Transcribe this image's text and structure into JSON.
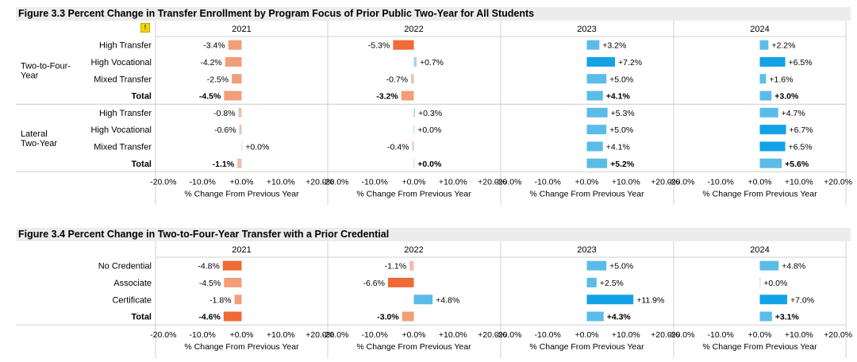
{
  "figures": [
    {
      "title": "Figure 3.3 Percent Change in Transfer Enrollment by Program Focus of Prior Public Two-Year for All Students",
      "info_icon": "info-icon",
      "chart_data": {
        "type": "bar",
        "orientation": "horizontal",
        "panels": [
          "2021",
          "2022",
          "2023",
          "2024"
        ],
        "groups": [
          {
            "label": "Two-to-Four-\nYear",
            "rows": [
              {
                "label": "High Transfer",
                "values": [
                  -3.4,
                  -5.3,
                  3.2,
                  2.2
                ]
              },
              {
                "label": "High Vocational",
                "values": [
                  -4.2,
                  0.7,
                  7.2,
                  6.5
                ]
              },
              {
                "label": "Mixed Transfer",
                "values": [
                  -2.5,
                  -0.7,
                  5.0,
                  1.6
                ]
              },
              {
                "label": "Total",
                "bold": true,
                "values": [
                  -4.5,
                  -3.2,
                  4.1,
                  3.0
                ]
              }
            ]
          },
          {
            "label": "Lateral\nTwo-Year",
            "rows": [
              {
                "label": "High Transfer",
                "values": [
                  -0.8,
                  0.3,
                  5.3,
                  4.7
                ]
              },
              {
                "label": "High Vocational",
                "values": [
                  -0.6,
                  0.0,
                  5.0,
                  6.7
                ]
              },
              {
                "label": "Mixed Transfer",
                "values": [
                  0.0,
                  -0.4,
                  4.1,
                  6.5
                ]
              },
              {
                "label": "Total",
                "bold": true,
                "values": [
                  -1.1,
                  0.0,
                  5.2,
                  5.6
                ]
              }
            ]
          }
        ],
        "xticks": [
          "-20.0%",
          "-10.0%",
          "+0.0%",
          "+10.0%",
          "+20.0%"
        ],
        "xlabel": "% Change From Previous Year",
        "xlim": [
          -22,
          22
        ],
        "colors": {
          "neg_strong": "#f06a35",
          "neg_mid": "#f29e78",
          "neg_light": "#e9c2b2",
          "pos_strong": "#12a2e5",
          "pos_mid": "#5cbce8",
          "pos_light": "#a7d2ea"
        }
      }
    },
    {
      "title": "Figure 3.4 Percent Change in Two-to-Four-Year Transfer with a Prior Credential",
      "chart_data": {
        "type": "bar",
        "orientation": "horizontal",
        "panels": [
          "2021",
          "2022",
          "2023",
          "2024"
        ],
        "groups": [
          {
            "label": "",
            "rows": [
              {
                "label": "No Credential",
                "values": [
                  -4.8,
                  -1.1,
                  5.0,
                  4.8
                ]
              },
              {
                "label": "Associate",
                "values": [
                  -4.5,
                  -6.6,
                  2.5,
                  0.0
                ]
              },
              {
                "label": "Certificate",
                "values": [
                  -1.8,
                  4.8,
                  11.9,
                  7.0
                ]
              },
              {
                "label": "Total",
                "bold": true,
                "values": [
                  -4.6,
                  -3.0,
                  4.3,
                  3.1
                ]
              }
            ]
          }
        ],
        "xticks": [
          "-20.0%",
          "-10.0%",
          "+0.0%",
          "+10.0%",
          "+20.0%"
        ],
        "xlabel": "% Change From Previous Year",
        "xlim": [
          -22,
          22
        ],
        "colors": {
          "neg_strong": "#f06a35",
          "neg_mid": "#f29e78",
          "neg_light": "#e9c2b2",
          "pos_strong": "#12a2e5",
          "pos_mid": "#5cbce8",
          "pos_light": "#a7d2ea"
        }
      }
    }
  ]
}
